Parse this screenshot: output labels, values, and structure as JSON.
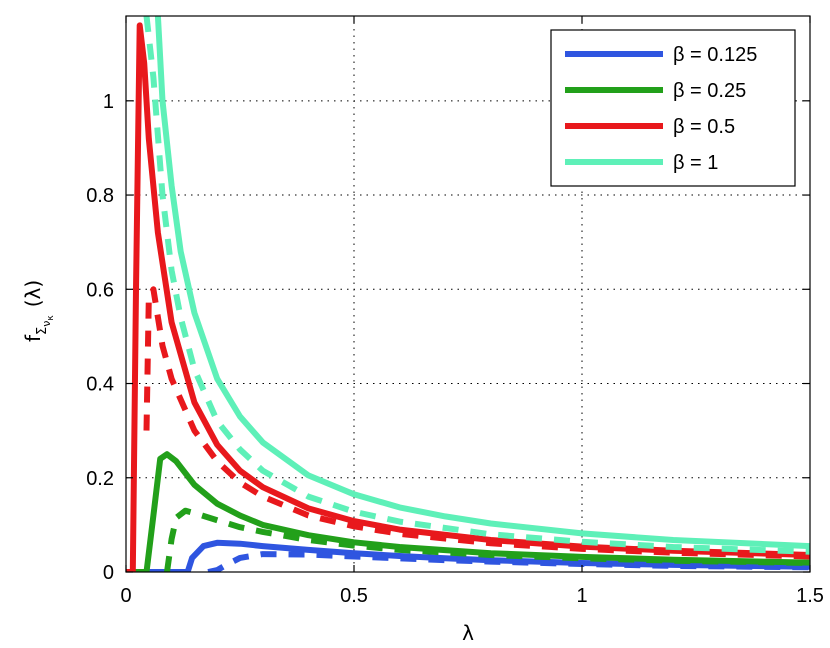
{
  "chart_data": {
    "type": "line",
    "xlabel": "λ",
    "ylabel": {
      "base": "f",
      "subscript": "Σ",
      "sub_sub": "ν",
      "sub_sub_sub": "κ",
      "arg": "(λ)"
    },
    "xlim": [
      0,
      1.5
    ],
    "ylim": [
      0,
      1.18
    ],
    "x_ticks": [
      0,
      0.5,
      1,
      1.5
    ],
    "x_tick_labels": [
      "0",
      "0.5",
      "1",
      "1.5"
    ],
    "y_ticks": [
      0,
      0.2,
      0.4,
      0.6,
      0.8,
      1
    ],
    "y_tick_labels": [
      "0",
      "0.2",
      "0.4",
      "0.6",
      "0.8",
      "1"
    ],
    "grid": true,
    "legend_position": "top-right",
    "series": [
      {
        "name": "β = 0.125",
        "color": "#2f55e0",
        "style": "solid",
        "x": [
          0,
          0.135,
          0.145,
          0.17,
          0.2,
          0.25,
          0.3,
          0.4,
          0.5,
          0.6,
          0.7,
          0.8,
          1.0,
          1.2,
          1.5
        ],
        "y": [
          0,
          0,
          0.03,
          0.055,
          0.062,
          0.06,
          0.055,
          0.047,
          0.04,
          0.034,
          0.029,
          0.025,
          0.019,
          0.015,
          0.011
        ]
      },
      {
        "name": "β = 0.125 (dashed)",
        "color": "#2f55e0",
        "style": "dashed",
        "x": [
          0.18,
          0.2,
          0.22,
          0.25,
          0.3,
          0.4,
          0.5,
          0.6,
          0.7,
          0.8,
          1.0,
          1.2,
          1.5
        ],
        "y": [
          0,
          0.004,
          0.015,
          0.03,
          0.038,
          0.037,
          0.033,
          0.029,
          0.025,
          0.022,
          0.017,
          0.013,
          0.01
        ]
      },
      {
        "name": "β = 0.25",
        "color": "#22a01a",
        "style": "solid",
        "x": [
          0,
          0.045,
          0.06,
          0.075,
          0.09,
          0.11,
          0.13,
          0.15,
          0.2,
          0.25,
          0.3,
          0.4,
          0.5,
          0.6,
          0.8,
          1.0,
          1.2,
          1.5
        ],
        "y": [
          0,
          0,
          0.12,
          0.24,
          0.25,
          0.235,
          0.21,
          0.185,
          0.145,
          0.12,
          0.1,
          0.078,
          0.063,
          0.053,
          0.04,
          0.032,
          0.026,
          0.02
        ]
      },
      {
        "name": "β = 0.25 (dashed)",
        "color": "#22a01a",
        "style": "dashed",
        "x": [
          0.09,
          0.1,
          0.11,
          0.13,
          0.15,
          0.2,
          0.25,
          0.3,
          0.4,
          0.5,
          0.6,
          0.8,
          1.0,
          1.2,
          1.5
        ],
        "y": [
          0,
          0.07,
          0.115,
          0.13,
          0.125,
          0.11,
          0.095,
          0.085,
          0.068,
          0.056,
          0.047,
          0.036,
          0.029,
          0.024,
          0.019
        ]
      },
      {
        "name": "β = 0.5",
        "color": "#e8181c",
        "style": "solid",
        "x": [
          0,
          0.015,
          0.022,
          0.03,
          0.04,
          0.05,
          0.07,
          0.1,
          0.15,
          0.2,
          0.25,
          0.3,
          0.4,
          0.5,
          0.6,
          0.8,
          1.0,
          1.2,
          1.5
        ],
        "y": [
          0,
          0,
          0.6,
          1.16,
          1.08,
          0.92,
          0.72,
          0.53,
          0.36,
          0.27,
          0.215,
          0.18,
          0.135,
          0.108,
          0.09,
          0.068,
          0.054,
          0.045,
          0.036
        ]
      },
      {
        "name": "β = 0.5 (dashed)",
        "color": "#e8181c",
        "style": "dashed",
        "x": [
          0.045,
          0.05,
          0.06,
          0.08,
          0.1,
          0.15,
          0.2,
          0.25,
          0.3,
          0.4,
          0.5,
          0.6,
          0.8,
          1.0,
          1.2,
          1.5
        ],
        "y": [
          0.3,
          0.58,
          0.6,
          0.48,
          0.41,
          0.3,
          0.235,
          0.19,
          0.16,
          0.12,
          0.097,
          0.081,
          0.061,
          0.049,
          0.041,
          0.033
        ]
      },
      {
        "name": "β = 1",
        "color": "#5ef0b8",
        "style": "solid",
        "x": [
          0.07,
          0.08,
          0.1,
          0.12,
          0.15,
          0.2,
          0.25,
          0.3,
          0.4,
          0.5,
          0.6,
          0.7,
          0.8,
          1.0,
          1.2,
          1.5
        ],
        "y": [
          1.18,
          1.0,
          0.82,
          0.68,
          0.55,
          0.41,
          0.33,
          0.275,
          0.205,
          0.165,
          0.137,
          0.118,
          0.103,
          0.082,
          0.068,
          0.055
        ]
      },
      {
        "name": "β = 1 (dashed)",
        "color": "#5ef0b8",
        "style": "dashed",
        "x": [
          0.045,
          0.06,
          0.08,
          0.1,
          0.12,
          0.15,
          0.2,
          0.25,
          0.3,
          0.4,
          0.5,
          0.6,
          0.8,
          1.0,
          1.2,
          1.5
        ],
        "y": [
          1.18,
          1.05,
          0.8,
          0.64,
          0.54,
          0.43,
          0.32,
          0.26,
          0.215,
          0.16,
          0.128,
          0.107,
          0.08,
          0.064,
          0.053,
          0.043
        ]
      }
    ],
    "legend": [
      {
        "label": "β = 0.125",
        "color": "#2f55e0"
      },
      {
        "label": "β = 0.25",
        "color": "#22a01a"
      },
      {
        "label": "β = 0.5",
        "color": "#e8181c"
      },
      {
        "label": "β = 1",
        "color": "#5ef0b8"
      }
    ]
  }
}
